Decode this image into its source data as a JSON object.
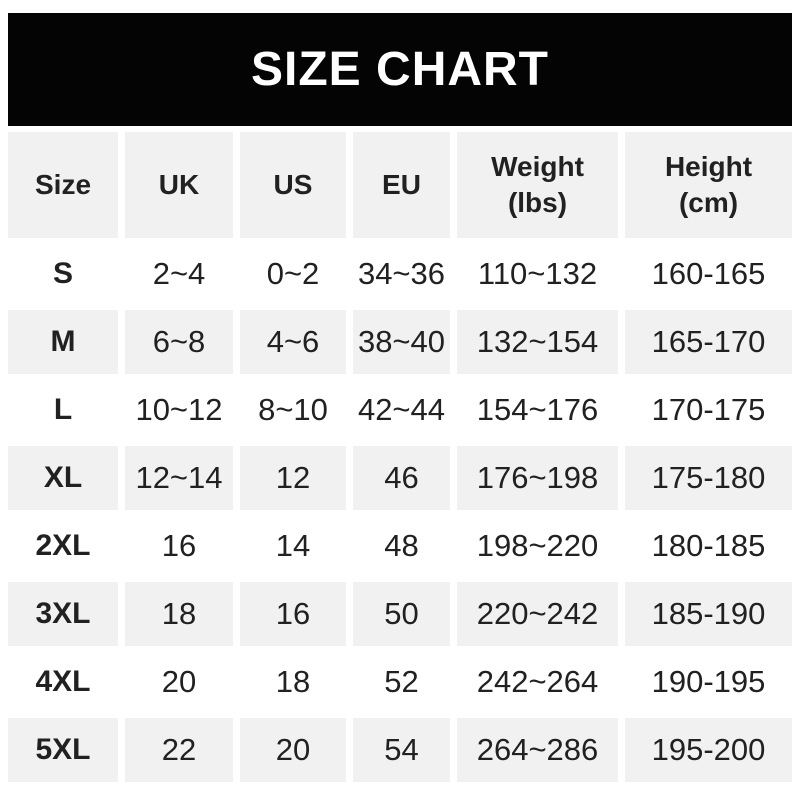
{
  "banner": {
    "title": "SIZE CHART"
  },
  "header": {
    "cells": [
      {
        "label": "Size"
      },
      {
        "label": "UK"
      },
      {
        "label": "US"
      },
      {
        "label": "EU"
      },
      {
        "label": "Weight",
        "sub": "(lbs)"
      },
      {
        "label": "Height",
        "sub": "(cm)"
      }
    ]
  },
  "chart_data": {
    "type": "table",
    "title": "SIZE CHART",
    "columns": [
      "Size",
      "UK",
      "US",
      "EU",
      "Weight (lbs)",
      "Height (cm)"
    ],
    "rows": [
      [
        "S",
        "2~4",
        "0~2",
        "34~36",
        "110~132",
        "160-165"
      ],
      [
        "M",
        "6~8",
        "4~6",
        "38~40",
        "132~154",
        "165-170"
      ],
      [
        "L",
        "10~12",
        "8~10",
        "42~44",
        "154~176",
        "170-175"
      ],
      [
        "XL",
        "12~14",
        "12",
        "46",
        "176~198",
        "175-180"
      ],
      [
        "2XL",
        "16",
        "14",
        "48",
        "198~220",
        "180-185"
      ],
      [
        "3XL",
        "18",
        "16",
        "50",
        "220~242",
        "185-190"
      ],
      [
        "4XL",
        "20",
        "18",
        "52",
        "242~264",
        "190-195"
      ],
      [
        "5XL",
        "22",
        "20",
        "54",
        "264~286",
        "195-200"
      ]
    ],
    "layout": {
      "header_background": "#f1f1f1",
      "row_alt_background": "#f1f1f1",
      "row_background": "#ffffff",
      "banner_background": "#040404",
      "banner_text_color": "#ffffff",
      "text_color": "#212121",
      "weight_separator": "~",
      "height_separator": "-"
    }
  }
}
